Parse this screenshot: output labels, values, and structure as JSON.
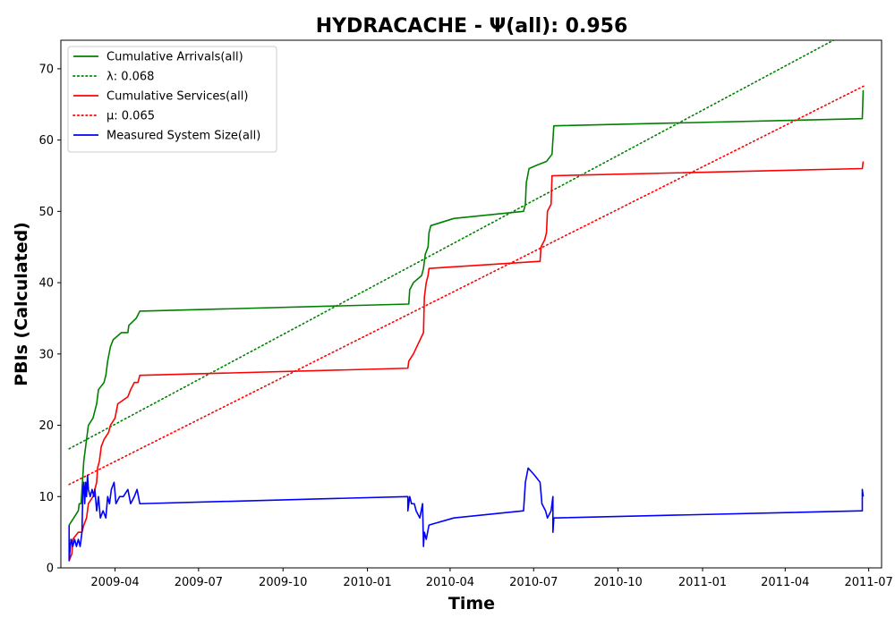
{
  "chart_data": {
    "type": "line",
    "title": "HYDRACACHE -  Ψ(all): 0.956",
    "xlabel": "Time",
    "ylabel": "PBIs (Calculated)",
    "x_type": "date",
    "xlim": [
      "2009-02-01",
      "2011-07-15"
    ],
    "ylim": [
      0,
      74
    ],
    "x_ticks": [
      "2009-04-01",
      "2009-07-01",
      "2009-10-01",
      "2010-01-01",
      "2010-04-01",
      "2010-07-01",
      "2010-10-01",
      "2011-01-01",
      "2011-04-01",
      "2011-07-01"
    ],
    "x_tick_labels": [
      "2009-04",
      "2009-07",
      "2009-10",
      "2010-01",
      "2010-04",
      "2010-07",
      "2010-10",
      "2011-01",
      "2011-04",
      "2011-07"
    ],
    "y_ticks": [
      0,
      10,
      20,
      30,
      40,
      50,
      60,
      70
    ],
    "y_tick_labels": [
      "0",
      "10",
      "20",
      "30",
      "40",
      "50",
      "60",
      "70"
    ],
    "grid": false,
    "legend_position": "top-left",
    "series": [
      {
        "name": "Cumulative Arrivals(all)",
        "color": "#008000",
        "style": "solid",
        "points": [
          [
            "2009-02-10",
            6
          ],
          [
            "2009-02-15",
            7
          ],
          [
            "2009-02-20",
            8
          ],
          [
            "2009-02-21",
            9
          ],
          [
            "2009-02-23",
            9
          ],
          [
            "2009-02-26",
            15
          ],
          [
            "2009-02-28",
            17
          ],
          [
            "2009-03-03",
            20
          ],
          [
            "2009-03-08",
            21
          ],
          [
            "2009-03-10",
            22
          ],
          [
            "2009-03-12",
            23
          ],
          [
            "2009-03-14",
            25
          ],
          [
            "2009-03-20",
            26
          ],
          [
            "2009-03-22",
            27
          ],
          [
            "2009-03-24",
            29
          ],
          [
            "2009-03-27",
            31
          ],
          [
            "2009-03-30",
            32
          ],
          [
            "2009-04-08",
            33
          ],
          [
            "2009-04-15",
            33
          ],
          [
            "2009-04-16",
            34
          ],
          [
            "2009-04-24",
            35
          ],
          [
            "2009-04-28",
            36
          ],
          [
            "2010-02-15",
            37
          ],
          [
            "2010-02-16",
            39
          ],
          [
            "2010-02-20",
            40
          ],
          [
            "2010-03-01",
            41
          ],
          [
            "2010-03-03",
            42
          ],
          [
            "2010-03-05",
            44
          ],
          [
            "2010-03-08",
            45
          ],
          [
            "2010-03-09",
            47
          ],
          [
            "2010-03-11",
            48
          ],
          [
            "2010-04-05",
            49
          ],
          [
            "2010-06-20",
            50
          ],
          [
            "2010-06-22",
            51
          ],
          [
            "2010-06-23",
            54
          ],
          [
            "2010-06-26",
            56
          ],
          [
            "2010-07-05",
            56.5
          ],
          [
            "2010-07-15",
            57
          ],
          [
            "2010-07-21",
            58
          ],
          [
            "2010-07-22",
            60
          ],
          [
            "2010-07-23",
            62
          ],
          [
            "2011-06-24",
            63
          ],
          [
            "2011-06-25",
            67
          ]
        ]
      },
      {
        "name": "λ: 0.068",
        "color": "#008000",
        "style": "dotted",
        "points": [
          [
            "2009-02-10",
            16.7
          ],
          [
            "2011-06-26",
            76.3
          ]
        ]
      },
      {
        "name": "Cumulative Services(all)",
        "color": "#ff0000",
        "style": "solid",
        "points": [
          [
            "2009-02-10",
            1
          ],
          [
            "2009-02-13",
            2
          ],
          [
            "2009-02-14",
            4
          ],
          [
            "2009-02-20",
            5
          ],
          [
            "2009-02-24",
            5
          ],
          [
            "2009-02-26",
            6
          ],
          [
            "2009-03-01",
            7
          ],
          [
            "2009-03-03",
            9
          ],
          [
            "2009-03-08",
            10
          ],
          [
            "2009-03-12",
            12
          ],
          [
            "2009-03-13",
            14
          ],
          [
            "2009-03-15",
            15
          ],
          [
            "2009-03-17",
            17
          ],
          [
            "2009-03-20",
            18
          ],
          [
            "2009-03-25",
            19
          ],
          [
            "2009-03-27",
            20
          ],
          [
            "2009-04-01",
            21
          ],
          [
            "2009-04-04",
            23
          ],
          [
            "2009-04-15",
            24
          ],
          [
            "2009-04-18",
            25
          ],
          [
            "2009-04-22",
            26
          ],
          [
            "2009-04-26",
            26
          ],
          [
            "2009-04-28",
            27
          ],
          [
            "2010-02-14",
            28
          ],
          [
            "2010-02-15",
            29
          ],
          [
            "2010-02-20",
            30
          ],
          [
            "2010-03-03",
            33
          ],
          [
            "2010-03-04",
            38
          ],
          [
            "2010-03-06",
            40
          ],
          [
            "2010-03-08",
            41
          ],
          [
            "2010-03-09",
            42
          ],
          [
            "2010-07-08",
            43
          ],
          [
            "2010-07-09",
            45
          ],
          [
            "2010-07-13",
            46
          ],
          [
            "2010-07-15",
            47
          ],
          [
            "2010-07-16",
            50
          ],
          [
            "2010-07-20",
            51
          ],
          [
            "2010-07-21",
            55
          ],
          [
            "2011-06-24",
            56
          ],
          [
            "2011-06-25",
            57
          ]
        ]
      },
      {
        "name": "μ: 0.065",
        "color": "#ff0000",
        "style": "dotted",
        "points": [
          [
            "2009-02-10",
            11.7
          ],
          [
            "2011-06-26",
            67.6
          ]
        ]
      },
      {
        "name": "Measured System Size(all)",
        "color": "#0000ff",
        "style": "solid",
        "points": [
          [
            "2009-02-10",
            6
          ],
          [
            "2009-02-10",
            1
          ],
          [
            "2009-02-12",
            4
          ],
          [
            "2009-02-14",
            3
          ],
          [
            "2009-02-16",
            4
          ],
          [
            "2009-02-18",
            3
          ],
          [
            "2009-02-20",
            4
          ],
          [
            "2009-02-22",
            3
          ],
          [
            "2009-02-24",
            5
          ],
          [
            "2009-02-25",
            11
          ],
          [
            "2009-02-26",
            12
          ],
          [
            "2009-02-27",
            9
          ],
          [
            "2009-02-28",
            12
          ],
          [
            "2009-03-01",
            10
          ],
          [
            "2009-03-02",
            13
          ],
          [
            "2009-03-03",
            11
          ],
          [
            "2009-03-05",
            10
          ],
          [
            "2009-03-07",
            11
          ],
          [
            "2009-03-09",
            10
          ],
          [
            "2009-03-10",
            11
          ],
          [
            "2009-03-12",
            8
          ],
          [
            "2009-03-14",
            10
          ],
          [
            "2009-03-16",
            7
          ],
          [
            "2009-03-19",
            8
          ],
          [
            "2009-03-22",
            7
          ],
          [
            "2009-03-24",
            10
          ],
          [
            "2009-03-26",
            9
          ],
          [
            "2009-03-28",
            11
          ],
          [
            "2009-03-31",
            12
          ],
          [
            "2009-04-02",
            9
          ],
          [
            "2009-04-06",
            10
          ],
          [
            "2009-04-10",
            10
          ],
          [
            "2009-04-15",
            11
          ],
          [
            "2009-04-18",
            9
          ],
          [
            "2009-04-22",
            10
          ],
          [
            "2009-04-25",
            11
          ],
          [
            "2009-04-28",
            9
          ],
          [
            "2010-02-14",
            10
          ],
          [
            "2010-02-14",
            8
          ],
          [
            "2010-02-16",
            10
          ],
          [
            "2010-02-18",
            9
          ],
          [
            "2010-02-21",
            9
          ],
          [
            "2010-02-23",
            8
          ],
          [
            "2010-02-27",
            7
          ],
          [
            "2010-03-02",
            9
          ],
          [
            "2010-03-03",
            3
          ],
          [
            "2010-03-04",
            5
          ],
          [
            "2010-03-06",
            4
          ],
          [
            "2010-03-09",
            6
          ],
          [
            "2010-04-05",
            7
          ],
          [
            "2010-06-20",
            8
          ],
          [
            "2010-06-22",
            12
          ],
          [
            "2010-06-25",
            14
          ],
          [
            "2010-07-02",
            13
          ],
          [
            "2010-07-08",
            12
          ],
          [
            "2010-07-10",
            9
          ],
          [
            "2010-07-14",
            8
          ],
          [
            "2010-07-16",
            7
          ],
          [
            "2010-07-20",
            8
          ],
          [
            "2010-07-22",
            10
          ],
          [
            "2010-07-22",
            5
          ],
          [
            "2010-07-23",
            7
          ],
          [
            "2011-06-24",
            8
          ],
          [
            "2011-06-24",
            11
          ],
          [
            "2011-06-25",
            10
          ]
        ]
      }
    ]
  }
}
